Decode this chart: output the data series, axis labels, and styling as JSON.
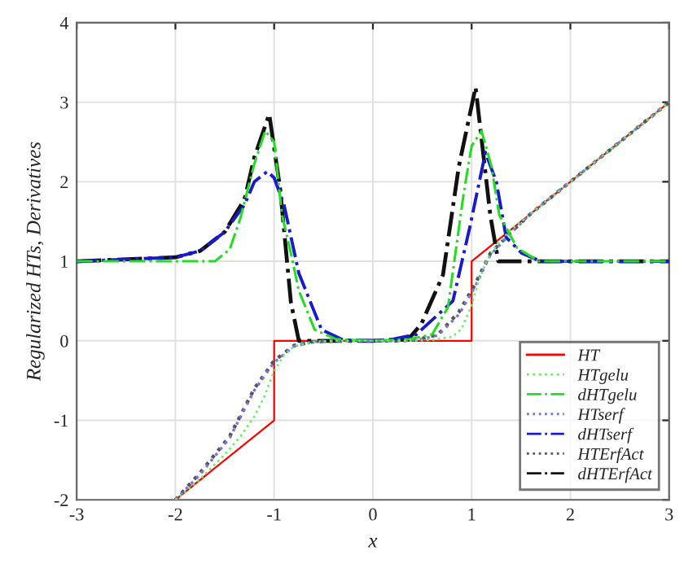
{
  "chart_data": {
    "type": "line",
    "xlabel": "x",
    "ylabel": "Regularized HTs, Derivatives",
    "xlim": [
      -3,
      3
    ],
    "ylim": [
      -2,
      4
    ],
    "xticks": [
      -3,
      -2,
      -1,
      0,
      1,
      2,
      3
    ],
    "yticks": [
      -2,
      -1,
      0,
      1,
      2,
      3,
      4
    ],
    "grid": true,
    "legend": "bottom right",
    "marker": "none",
    "series": [
      {
        "name": "HT",
        "color": "#ff0000",
        "line_style": "solid",
        "x": [
          -2,
          -1,
          -1,
          1,
          1,
          3
        ],
        "values": [
          -2,
          -1,
          0,
          0,
          1,
          3
        ]
      },
      {
        "name": "HTgelu",
        "color": "#66ee66",
        "line_style": "dotted",
        "x": [
          -2,
          -1.75,
          -1.5,
          -1.34,
          -1.2,
          -1.1,
          -1,
          -0.9,
          -0.8,
          -0.6,
          -0.3,
          0,
          0.3,
          0.6,
          0.8,
          0.9,
          1,
          1.07,
          1.15,
          1.25,
          1.4,
          1.6,
          2,
          3
        ],
        "values": [
          -2,
          -1.74,
          -1.43,
          -1.2,
          -0.95,
          -0.7,
          -0.38,
          -0.18,
          -0.07,
          -0.01,
          0,
          0,
          0,
          0.01,
          0.05,
          0.15,
          0.45,
          0.75,
          1.0,
          1.2,
          1.4,
          1.6,
          2,
          3
        ]
      },
      {
        "name": "dHTgelu",
        "color": "#22dd22",
        "line_style": "dashdot",
        "x": [
          -3,
          -2,
          -1.6,
          -1.45,
          -1.34,
          -1.2,
          -1.09,
          -1,
          -0.92,
          -0.83,
          -0.75,
          -0.59,
          -0.37,
          0,
          0.37,
          0.6,
          0.76,
          0.92,
          1.0,
          1.1,
          1.2,
          1.28,
          1.46,
          1.68,
          2,
          3
        ],
        "values": [
          1,
          1,
          1,
          1.15,
          1.55,
          2.23,
          2.64,
          2.5,
          1.58,
          1.1,
          0.63,
          0.14,
          0.02,
          0,
          0.02,
          0.08,
          0.42,
          1.86,
          2.45,
          2.64,
          2.2,
          1.58,
          1.17,
          1,
          1,
          1
        ]
      },
      {
        "name": "HTserf",
        "color": "#7777dd",
        "line_style": "dotted",
        "x": [
          -2,
          -1.75,
          -1.45,
          -1.2,
          -1,
          -0.8,
          -0.6,
          -0.3,
          0,
          0.3,
          0.5,
          0.66,
          0.87,
          1.03,
          1.19,
          1.41,
          1.6,
          2,
          3
        ],
        "values": [
          -2,
          -1.68,
          -1.22,
          -0.62,
          -0.27,
          -0.07,
          -0.01,
          0,
          0,
          0,
          0.02,
          0.07,
          0.33,
          0.67,
          1.08,
          1.37,
          1.6,
          2,
          3
        ]
      },
      {
        "name": "dHTserf",
        "color": "#1a1acc",
        "line_style": "dashdot",
        "x": [
          -3,
          -2,
          -1.75,
          -1.5,
          -1.3,
          -1.2,
          -1.07,
          -1,
          -0.9,
          -0.75,
          -0.52,
          -0.3,
          0,
          0.2,
          0.44,
          0.81,
          0.98,
          1.14,
          1.25,
          1.35,
          1.51,
          1.7,
          2,
          3
        ],
        "values": [
          1,
          1.05,
          1.13,
          1.37,
          1.71,
          2.0,
          2.13,
          2.05,
          1.71,
          0.85,
          0.14,
          0.01,
          0,
          0.02,
          0.08,
          0.5,
          1.42,
          2.37,
          2.0,
          1.3,
          1.1,
          1.0,
          1,
          1
        ]
      },
      {
        "name": "HTErfAct",
        "color": "#555555",
        "line_style": "dotted",
        "x": [
          -2,
          -1.75,
          -1.45,
          -1.2,
          -1,
          -0.8,
          -0.6,
          -0.3,
          0,
          0.3,
          0.5,
          0.66,
          0.87,
          1.03,
          1.19,
          1.41,
          1.6,
          2,
          3
        ],
        "values": [
          -2,
          -1.66,
          -1.2,
          -0.6,
          -0.25,
          -0.06,
          -0.01,
          0,
          0,
          0,
          0.03,
          0.08,
          0.36,
          0.7,
          1.1,
          1.38,
          1.6,
          2,
          3
        ]
      },
      {
        "name": "dHTErfAct",
        "color": "#111111",
        "line_style": "dashdot",
        "x": [
          -3,
          -2,
          -1.75,
          -1.5,
          -1.3,
          -1.2,
          -1.05,
          -0.94,
          -0.83,
          -0.75,
          -0.5,
          0,
          0.36,
          0.49,
          0.71,
          0.87,
          1.04,
          1.19,
          1.27,
          1.5,
          2,
          3
        ],
        "values": [
          1,
          1.05,
          1.13,
          1.37,
          1.78,
          2.31,
          2.85,
          1.92,
          0.48,
          0,
          0,
          0,
          0.02,
          0.21,
          0.83,
          2.19,
          3.19,
          1.57,
          1.0,
          1,
          1,
          1
        ]
      }
    ]
  }
}
